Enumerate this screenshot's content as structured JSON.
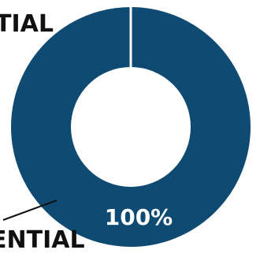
{
  "chart_data": {
    "type": "pie",
    "title": "",
    "slices": [
      {
        "label": "ENTIAL",
        "value": 100,
        "display": "100%",
        "color": "#0f4a72"
      }
    ],
    "hole": true
  },
  "labels": {
    "top_left": "TIAL",
    "bottom_left": "ENTIAL",
    "percent": "100%"
  },
  "colors": {
    "ring": "#0f4a72",
    "background": "#ffffff",
    "text_dark": "#111111"
  }
}
